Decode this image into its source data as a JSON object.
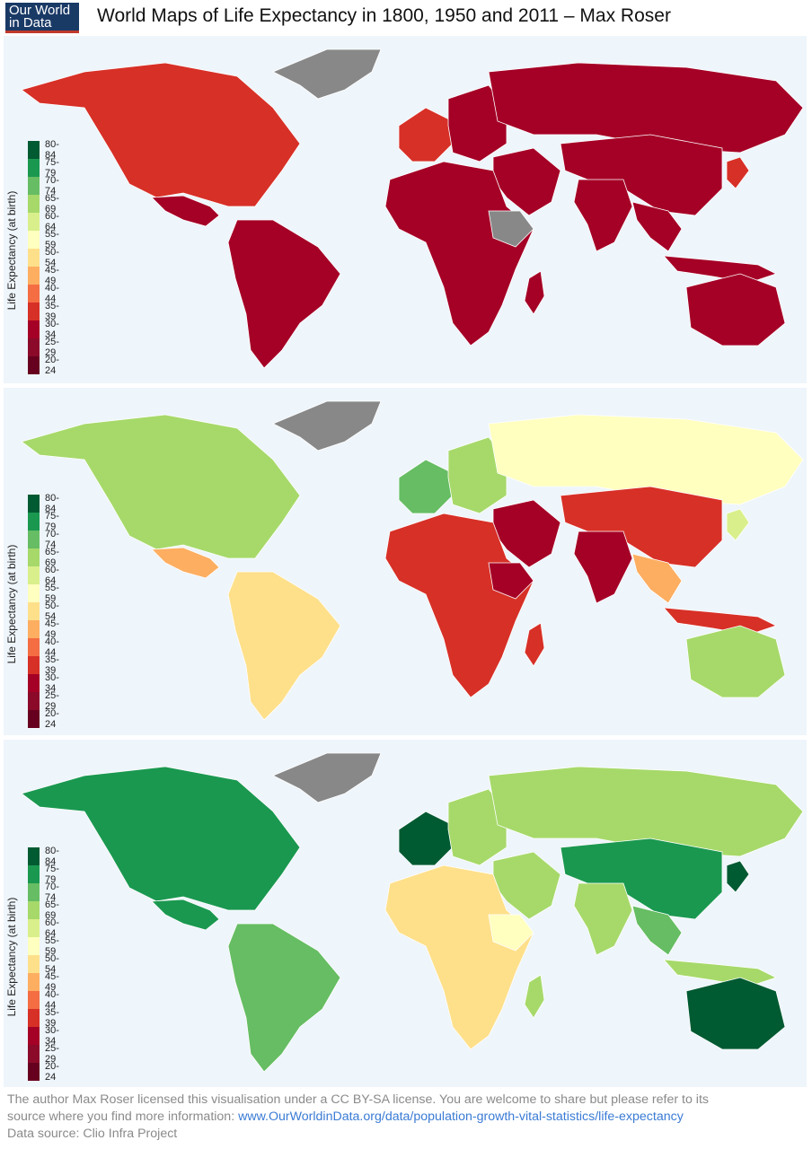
{
  "logo": {
    "line1": "Our World",
    "line2": "in Data"
  },
  "title": "World Maps of Life Expectancy in 1800, 1950 and 2011 – Max Roser",
  "legend": {
    "axis_label": "Life Expectancy (at birth)",
    "bins": [
      {
        "label": "80-84",
        "color": "#005a32"
      },
      {
        "label": "75-79",
        "color": "#1a9850"
      },
      {
        "label": "70-74",
        "color": "#66bd63"
      },
      {
        "label": "65-69",
        "color": "#a6d96a"
      },
      {
        "label": "60-64",
        "color": "#d9ef8b"
      },
      {
        "label": "55-59",
        "color": "#ffffbf"
      },
      {
        "label": "50-54",
        "color": "#fee08b"
      },
      {
        "label": "45-49",
        "color": "#fdae61"
      },
      {
        "label": "40-44",
        "color": "#f46d43"
      },
      {
        "label": "35-39",
        "color": "#d73027"
      },
      {
        "label": "30-34",
        "color": "#a50026"
      },
      {
        "label": "25-29",
        "color": "#8b0a2a"
      },
      {
        "label": "20-24",
        "color": "#67001f"
      }
    ]
  },
  "maps": [
    {
      "year": "1800",
      "colors": {
        "north_america": "#d73027",
        "greenland": "#888888",
        "mexico": "#a50026",
        "south_america": "#a50026",
        "europe": "#a50026",
        "west_europe": "#d73027",
        "russia": "#a50026",
        "africa": "#a50026",
        "middle_east": "#a50026",
        "asia": "#a50026",
        "india": "#a50026",
        "southeast_asia": "#a50026",
        "australia": "#a50026",
        "indonesia": "#a50026",
        "japan": "#d73027",
        "horn_of_africa": "#888888",
        "madagascar": "#a50026"
      }
    },
    {
      "year": "1950",
      "colors": {
        "north_america": "#a6d96a",
        "greenland": "#888888",
        "mexico": "#fdae61",
        "south_america": "#fee08b",
        "europe": "#a6d96a",
        "west_europe": "#66bd63",
        "russia": "#ffffbf",
        "africa": "#d73027",
        "middle_east": "#a50026",
        "asia": "#d73027",
        "india": "#a50026",
        "southeast_asia": "#fdae61",
        "australia": "#a6d96a",
        "indonesia": "#d73027",
        "japan": "#d9ef8b",
        "horn_of_africa": "#a50026",
        "madagascar": "#d73027"
      }
    },
    {
      "year": "2011",
      "colors": {
        "north_america": "#1a9850",
        "greenland": "#888888",
        "mexico": "#1a9850",
        "south_america": "#66bd63",
        "europe": "#a6d96a",
        "west_europe": "#005a32",
        "russia": "#a6d96a",
        "africa": "#fee08b",
        "middle_east": "#a6d96a",
        "asia": "#1a9850",
        "india": "#a6d96a",
        "southeast_asia": "#66bd63",
        "australia": "#005a32",
        "indonesia": "#a6d96a",
        "japan": "#005a32",
        "horn_of_africa": "#ffffbf",
        "madagascar": "#a6d96a"
      }
    }
  ],
  "footer": {
    "line1": "The author Max Roser licensed this visualisation under a CC BY-SA license. You are welcome to share but please refer to its",
    "line2_prefix": "source where you find more information: ",
    "link": "www.OurWorldinData.org/data/population-growth-vital-statistics/life-expectancy",
    "line3": "Data source: Clio Infra Project"
  }
}
